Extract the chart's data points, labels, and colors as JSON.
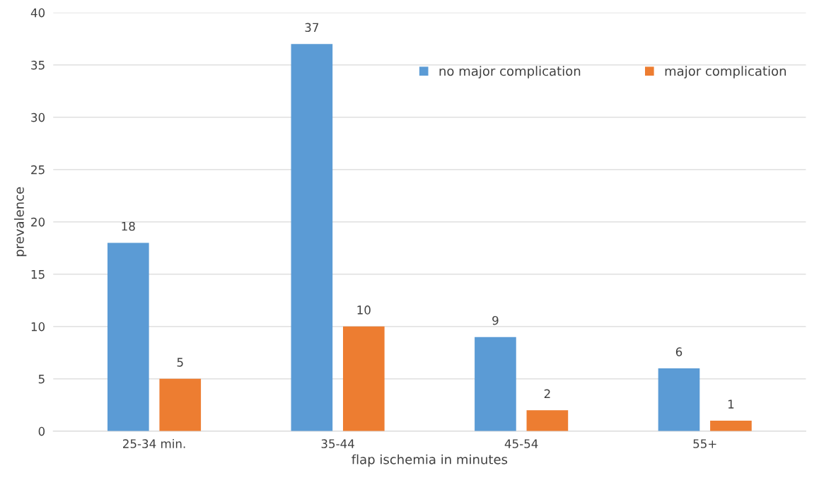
{
  "chart_data": {
    "type": "bar",
    "xlabel": "flap ischemia in minutes",
    "ylabel": "prevalence",
    "categories": [
      "25-34 min.",
      "35-44",
      "45-54",
      "55+"
    ],
    "series": [
      {
        "name": "no major complication",
        "color": "#5b9bd5",
        "values": [
          18,
          37,
          9,
          6
        ]
      },
      {
        "name": "major complication",
        "color": "#ed7d31",
        "values": [
          5,
          10,
          2,
          1
        ]
      }
    ],
    "ylim": [
      0,
      40
    ],
    "yticks": [
      0,
      5,
      10,
      15,
      20,
      25,
      30,
      35,
      40
    ],
    "grid": "y",
    "legend": "top right",
    "data_labels": true
  }
}
